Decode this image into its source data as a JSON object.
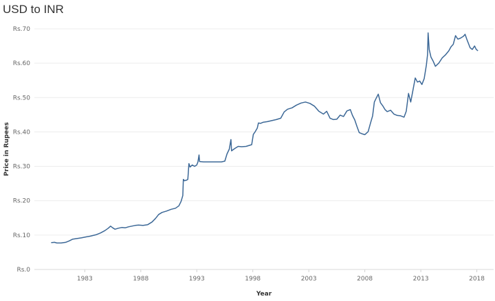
{
  "chart_data": {
    "type": "line",
    "title": "USD to INR",
    "xlabel": "Year",
    "ylabel": "Price in Rupees",
    "xlim": [
      1978.5,
      2019.5
    ],
    "ylim": [
      0,
      0.7
    ],
    "grid": true,
    "x_ticks": [
      1983,
      1988,
      1993,
      1998,
      2003,
      2008,
      2013,
      2018
    ],
    "x_tick_labels": [
      "1983",
      "1988",
      "1993",
      "1998",
      "2003",
      "2008",
      "2013",
      "2018"
    ],
    "y_ticks": [
      0,
      0.1,
      0.2,
      0.3,
      0.4,
      0.5,
      0.6,
      0.7
    ],
    "y_tick_labels": [
      "Rs.0",
      "Rs.10",
      "Rs.20",
      "Rs.30",
      "Rs.40",
      "Rs.50",
      "Rs.60",
      "Rs.70"
    ],
    "series": [
      {
        "color": "#3b6796",
        "points": [
          [
            1980.0,
            0.078
          ],
          [
            1980.3,
            0.079
          ],
          [
            1980.5,
            0.077
          ],
          [
            1980.9,
            0.077
          ],
          [
            1981.3,
            0.079
          ],
          [
            1981.6,
            0.083
          ],
          [
            1981.9,
            0.088
          ],
          [
            1982.3,
            0.09
          ],
          [
            1982.7,
            0.092
          ],
          [
            1983.0,
            0.094
          ],
          [
            1983.5,
            0.097
          ],
          [
            1984.0,
            0.101
          ],
          [
            1984.4,
            0.106
          ],
          [
            1984.8,
            0.113
          ],
          [
            1985.1,
            0.12
          ],
          [
            1985.3,
            0.126
          ],
          [
            1985.5,
            0.121
          ],
          [
            1985.7,
            0.117
          ],
          [
            1986.0,
            0.12
          ],
          [
            1986.3,
            0.122
          ],
          [
            1986.6,
            0.121
          ],
          [
            1986.9,
            0.124
          ],
          [
            1987.2,
            0.126
          ],
          [
            1987.5,
            0.128
          ],
          [
            1987.8,
            0.129
          ],
          [
            1988.2,
            0.128
          ],
          [
            1988.6,
            0.13
          ],
          [
            1989.0,
            0.138
          ],
          [
            1989.3,
            0.148
          ],
          [
            1989.6,
            0.16
          ],
          [
            1989.9,
            0.166
          ],
          [
            1990.3,
            0.17
          ],
          [
            1990.7,
            0.175
          ],
          [
            1991.1,
            0.178
          ],
          [
            1991.4,
            0.185
          ],
          [
            1991.6,
            0.198
          ],
          [
            1991.75,
            0.215
          ],
          [
            1991.8,
            0.262
          ],
          [
            1991.9,
            0.258
          ],
          [
            1992.1,
            0.26
          ],
          [
            1992.2,
            0.262
          ],
          [
            1992.3,
            0.308
          ],
          [
            1992.4,
            0.298
          ],
          [
            1992.6,
            0.304
          ],
          [
            1992.8,
            0.3
          ],
          [
            1993.0,
            0.304
          ],
          [
            1993.1,
            0.313
          ],
          [
            1993.2,
            0.333
          ],
          [
            1993.25,
            0.314
          ],
          [
            1993.6,
            0.313
          ],
          [
            1994.2,
            0.313
          ],
          [
            1994.8,
            0.313
          ],
          [
            1995.2,
            0.313
          ],
          [
            1995.5,
            0.315
          ],
          [
            1995.7,
            0.336
          ],
          [
            1995.9,
            0.35
          ],
          [
            1996.05,
            0.378
          ],
          [
            1996.1,
            0.345
          ],
          [
            1996.4,
            0.352
          ],
          [
            1996.7,
            0.358
          ],
          [
            1997.0,
            0.357
          ],
          [
            1997.4,
            0.358
          ],
          [
            1997.7,
            0.361
          ],
          [
            1997.9,
            0.363
          ],
          [
            1998.05,
            0.393
          ],
          [
            1998.2,
            0.4
          ],
          [
            1998.4,
            0.411
          ],
          [
            1998.5,
            0.426
          ],
          [
            1998.7,
            0.425
          ],
          [
            1998.9,
            0.428
          ],
          [
            1999.3,
            0.43
          ],
          [
            1999.7,
            0.433
          ],
          [
            2000.1,
            0.436
          ],
          [
            2000.5,
            0.44
          ],
          [
            2000.8,
            0.458
          ],
          [
            2001.1,
            0.466
          ],
          [
            2001.5,
            0.47
          ],
          [
            2001.9,
            0.478
          ],
          [
            2002.3,
            0.484
          ],
          [
            2002.7,
            0.487
          ],
          [
            2003.1,
            0.483
          ],
          [
            2003.5,
            0.475
          ],
          [
            2003.9,
            0.46
          ],
          [
            2004.3,
            0.452
          ],
          [
            2004.6,
            0.46
          ],
          [
            2004.9,
            0.44
          ],
          [
            2005.2,
            0.436
          ],
          [
            2005.5,
            0.437
          ],
          [
            2005.8,
            0.449
          ],
          [
            2006.1,
            0.445
          ],
          [
            2006.4,
            0.461
          ],
          [
            2006.7,
            0.465
          ],
          [
            2006.9,
            0.448
          ],
          [
            2007.1,
            0.435
          ],
          [
            2007.3,
            0.416
          ],
          [
            2007.5,
            0.398
          ],
          [
            2007.8,
            0.394
          ],
          [
            2008.0,
            0.392
          ],
          [
            2008.3,
            0.401
          ],
          [
            2008.5,
            0.425
          ],
          [
            2008.7,
            0.447
          ],
          [
            2008.85,
            0.487
          ],
          [
            2009.0,
            0.497
          ],
          [
            2009.2,
            0.51
          ],
          [
            2009.4,
            0.485
          ],
          [
            2009.6,
            0.476
          ],
          [
            2009.8,
            0.465
          ],
          [
            2010.0,
            0.459
          ],
          [
            2010.3,
            0.463
          ],
          [
            2010.6,
            0.452
          ],
          [
            2010.9,
            0.448
          ],
          [
            2011.2,
            0.447
          ],
          [
            2011.5,
            0.443
          ],
          [
            2011.7,
            0.46
          ],
          [
            2011.9,
            0.512
          ],
          [
            2012.1,
            0.487
          ],
          [
            2012.3,
            0.522
          ],
          [
            2012.5,
            0.557
          ],
          [
            2012.7,
            0.545
          ],
          [
            2012.9,
            0.548
          ],
          [
            2013.1,
            0.538
          ],
          [
            2013.3,
            0.555
          ],
          [
            2013.5,
            0.595
          ],
          [
            2013.6,
            0.625
          ],
          [
            2013.65,
            0.688
          ],
          [
            2013.75,
            0.64
          ],
          [
            2013.9,
            0.618
          ],
          [
            2014.1,
            0.606
          ],
          [
            2014.3,
            0.591
          ],
          [
            2014.6,
            0.6
          ],
          [
            2014.9,
            0.615
          ],
          [
            2015.2,
            0.624
          ],
          [
            2015.5,
            0.636
          ],
          [
            2015.7,
            0.648
          ],
          [
            2015.9,
            0.655
          ],
          [
            2016.1,
            0.68
          ],
          [
            2016.3,
            0.67
          ],
          [
            2016.5,
            0.672
          ],
          [
            2016.8,
            0.678
          ],
          [
            2016.95,
            0.684
          ],
          [
            2017.1,
            0.67
          ],
          [
            2017.4,
            0.645
          ],
          [
            2017.6,
            0.64
          ],
          [
            2017.8,
            0.65
          ],
          [
            2017.95,
            0.64
          ],
          [
            2018.1,
            0.636
          ]
        ]
      }
    ]
  }
}
